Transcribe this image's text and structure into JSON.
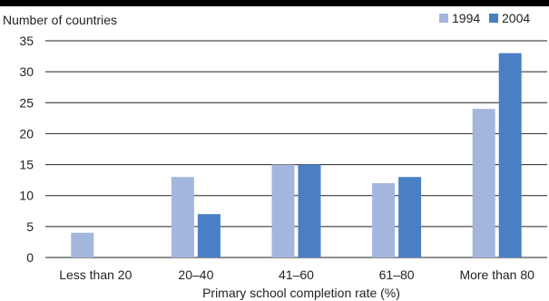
{
  "chart_data": {
    "type": "bar",
    "ylabel": "Number of countries",
    "xlabel": "Primary school completion rate (%)",
    "categories": [
      "Less than 20",
      "20–40",
      "41–60",
      "61–80",
      "More than 80"
    ],
    "series": [
      {
        "name": "1994",
        "values": [
          4,
          13,
          15,
          12,
          24
        ],
        "color": "#a3b6de"
      },
      {
        "name": "2004",
        "values": [
          0,
          7,
          15,
          13,
          33
        ],
        "color": "#4a7fc4"
      }
    ],
    "ylim": [
      0,
      35
    ],
    "yticks": [
      0,
      5,
      10,
      15,
      20,
      25,
      30,
      35
    ],
    "grid": true,
    "legend_position": "top-right"
  }
}
